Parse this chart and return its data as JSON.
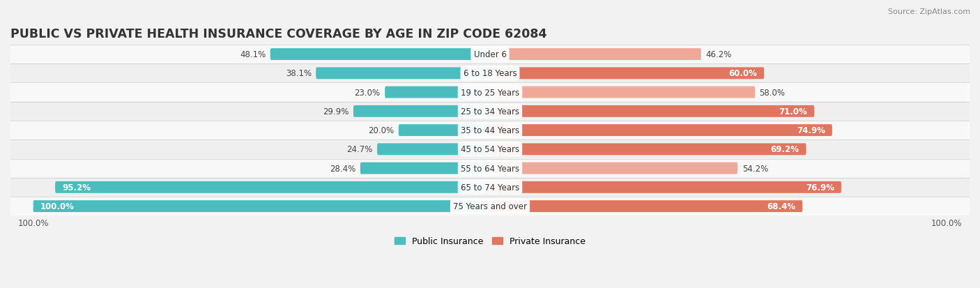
{
  "title": "PUBLIC VS PRIVATE HEALTH INSURANCE COVERAGE BY AGE IN ZIP CODE 62084",
  "source": "Source: ZipAtlas.com",
  "categories": [
    "Under 6",
    "6 to 18 Years",
    "19 to 25 Years",
    "25 to 34 Years",
    "35 to 44 Years",
    "45 to 54 Years",
    "55 to 64 Years",
    "65 to 74 Years",
    "75 Years and over"
  ],
  "public_values": [
    48.1,
    38.1,
    23.0,
    29.9,
    20.0,
    24.7,
    28.4,
    95.2,
    100.0
  ],
  "private_values": [
    46.2,
    60.0,
    58.0,
    71.0,
    74.9,
    69.2,
    54.2,
    76.9,
    68.4
  ],
  "public_color": "#4bbdbe",
  "private_color_dark": "#e07560",
  "private_color_light": "#f0a898",
  "bg_color": "#f2f2f2",
  "row_bg_colors": [
    "#f8f8f8",
    "#efefef",
    "#f8f8f8",
    "#efefef",
    "#f8f8f8",
    "#efefef",
    "#f8f8f8",
    "#efefef",
    "#f8f8f8"
  ],
  "bar_height": 0.58,
  "title_fontsize": 12.5,
  "label_fontsize": 8.5,
  "value_fontsize": 8.5,
  "legend_fontsize": 9,
  "source_fontsize": 8,
  "private_inside_threshold": 60,
  "public_inside_threshold": 90,
  "max_val": 100
}
